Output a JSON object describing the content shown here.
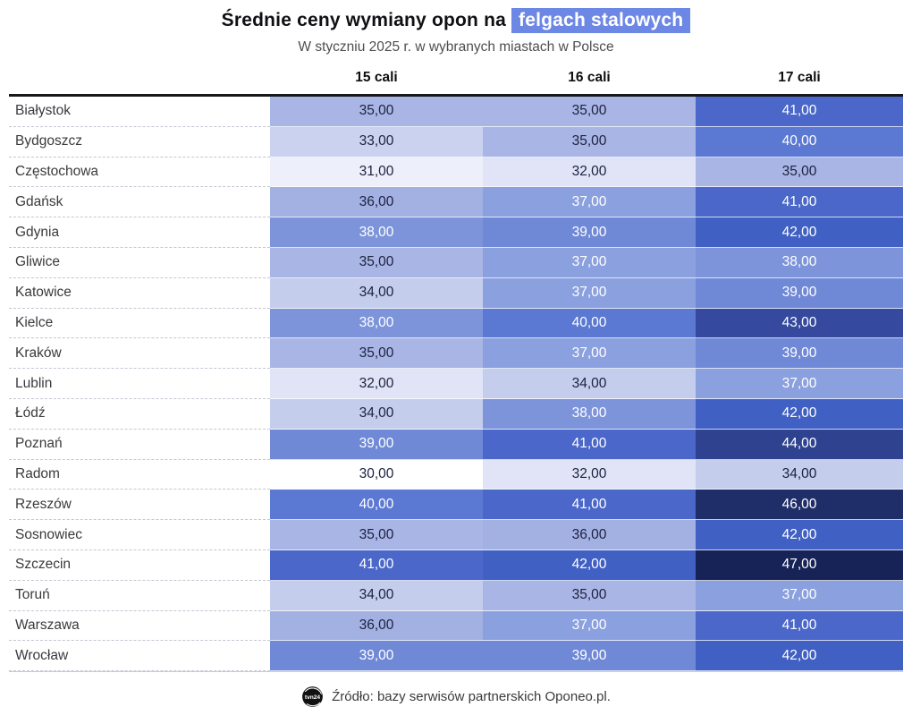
{
  "title": {
    "prefix": "Średnie ceny wymiany opon na",
    "highlight": "felgach stalowych"
  },
  "subtitle": "W styczniu 2025 r. w wybranych miastach w Polsce",
  "source": {
    "logo": "tvn24",
    "text": "Źródło: bazy serwisów partnerskich Oponeo.pl."
  },
  "colors": {
    "title_highlight_bg": "#6d87e4",
    "title_highlight_text": "#ffffff",
    "header_rule": "#17171c",
    "text_on_light": "#1d2140",
    "text_on_dark": "#ffffff",
    "white_text_min": 37,
    "value_colors": {
      "30": "#ffffff",
      "31": "#edf0fa",
      "32": "#e0e4f6",
      "33": "#cbd2ef",
      "34": "#c5cdec",
      "35": "#a9b5e4",
      "36": "#a2b0e2",
      "37": "#8ba0de",
      "38": "#7d94da",
      "39": "#7089d6",
      "40": "#5b78d2",
      "41": "#4a67c9",
      "42": "#4160c4",
      "43": "#35499e",
      "44": "#2e4290",
      "46": "#1f2e68",
      "47": "#172257"
    }
  },
  "chart_data": {
    "type": "heatmap",
    "title": "Średnie ceny wymiany opon na felgach stalowych",
    "subtitle": "W styczniu 2025 r. w wybranych miastach w Polsce",
    "columns": [
      "15 cali",
      "16 cali",
      "17 cali"
    ],
    "rows": [
      "Białystok",
      "Bydgoszcz",
      "Częstochowa",
      "Gdańsk",
      "Gdynia",
      "Gliwice",
      "Katowice",
      "Kielce",
      "Kraków",
      "Lublin",
      "Łódź",
      "Poznań",
      "Radom",
      "Rzeszów",
      "Sosnowiec",
      "Szczecin",
      "Toruń",
      "Warszawa",
      "Wrocław"
    ],
    "values": [
      [
        35,
        35,
        41
      ],
      [
        33,
        35,
        40
      ],
      [
        31,
        32,
        35
      ],
      [
        36,
        37,
        41
      ],
      [
        38,
        39,
        42
      ],
      [
        35,
        37,
        38
      ],
      [
        34,
        37,
        39
      ],
      [
        38,
        40,
        43
      ],
      [
        35,
        37,
        39
      ],
      [
        32,
        34,
        37
      ],
      [
        34,
        38,
        42
      ],
      [
        39,
        41,
        44
      ],
      [
        30,
        32,
        34
      ],
      [
        40,
        41,
        46
      ],
      [
        35,
        36,
        42
      ],
      [
        41,
        42,
        47
      ],
      [
        34,
        35,
        37
      ],
      [
        36,
        37,
        41
      ],
      [
        39,
        39,
        42
      ]
    ],
    "value_format": "two decimals, comma separator (e.g. 35,00)",
    "color_scale": {
      "min_value": 30,
      "max_value": 47,
      "low_color": "#ffffff",
      "high_color": "#172257"
    },
    "legend": "none",
    "source": "Źródło: bazy serwisów partnerskich Oponeo.pl."
  }
}
